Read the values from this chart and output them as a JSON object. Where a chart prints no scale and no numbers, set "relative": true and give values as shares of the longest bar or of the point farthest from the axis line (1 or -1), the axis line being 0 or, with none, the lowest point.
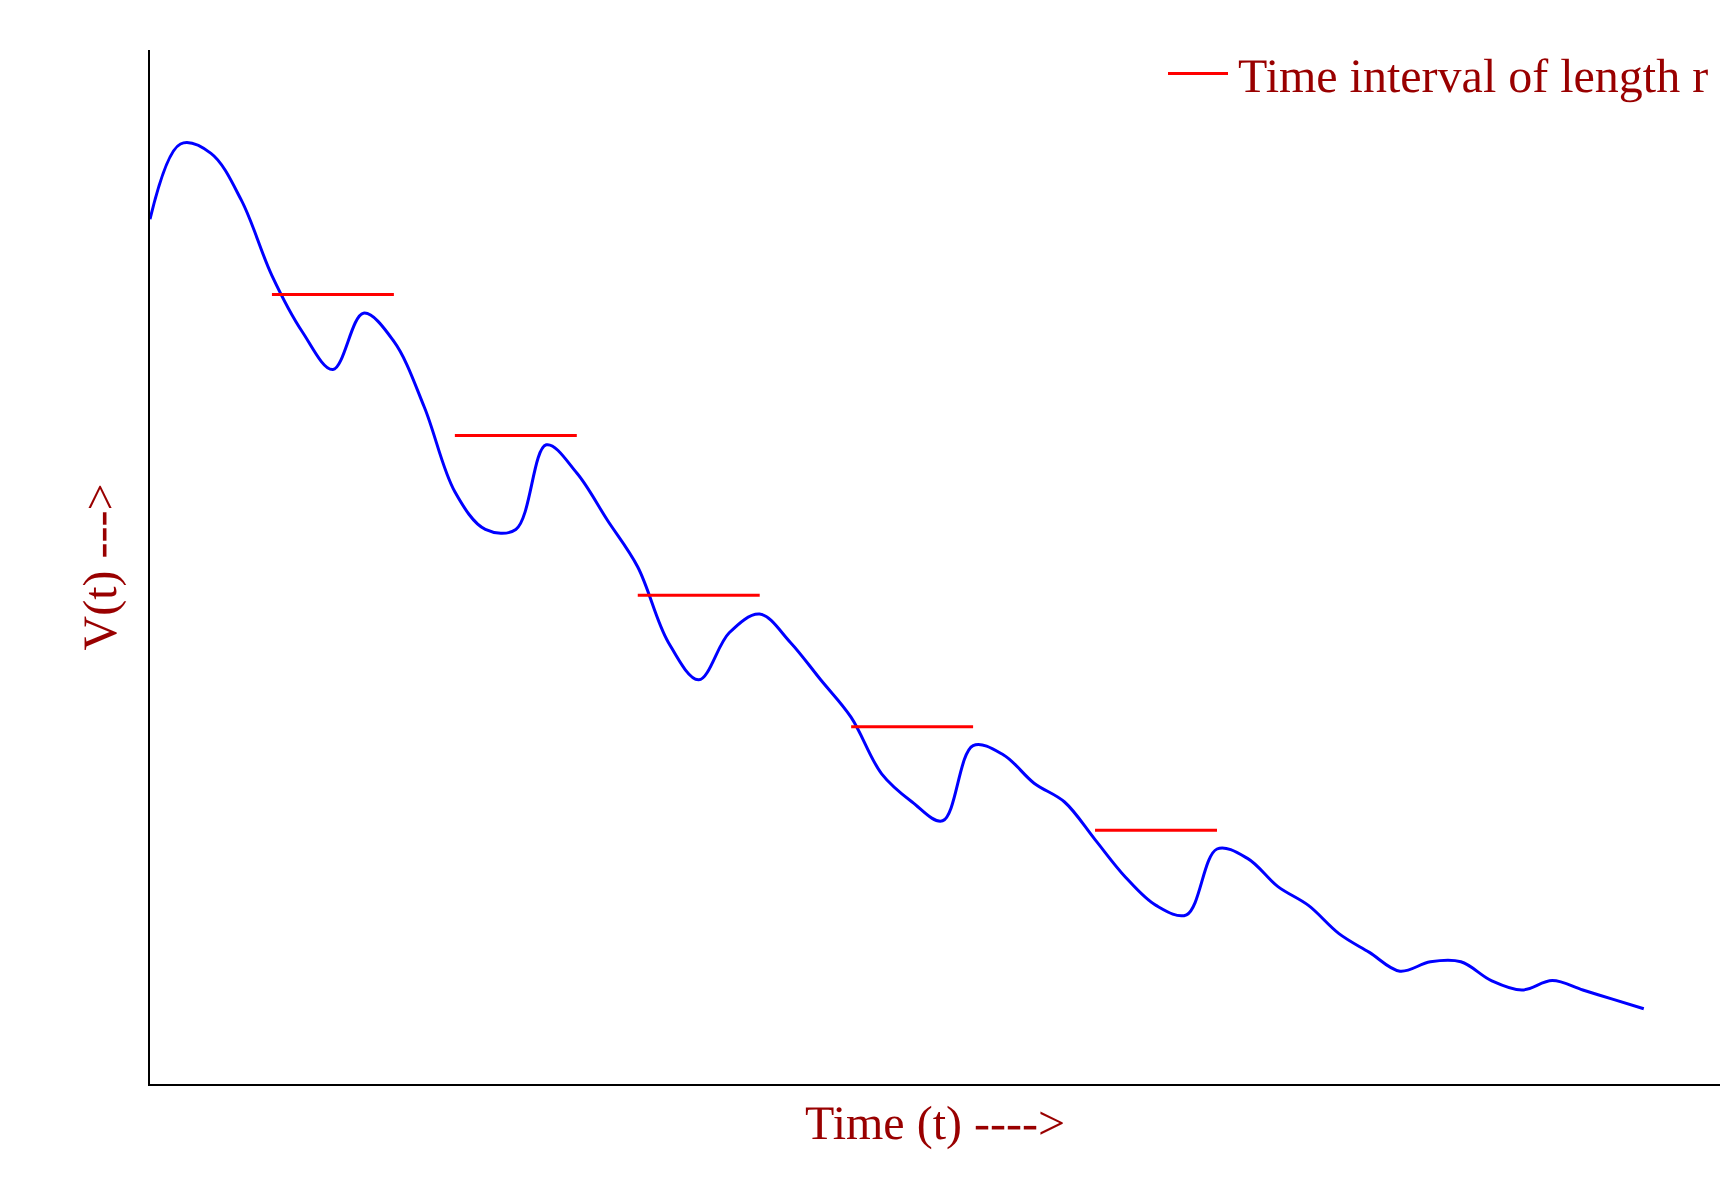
{
  "chart_data": {
    "type": "line",
    "relative": true,
    "xlabel": "Time (t) ---->",
    "ylabel": "V(t) --->",
    "legend": "top right",
    "categories": [
      null,
      null,
      null,
      null,
      null,
      null,
      null,
      null,
      null,
      null,
      null,
      null,
      null,
      null,
      null,
      null,
      null,
      null,
      null,
      null,
      null,
      null,
      null,
      null,
      null,
      null,
      null,
      null,
      null,
      null,
      null,
      null,
      null,
      null,
      null,
      null,
      null,
      null,
      null,
      null,
      null,
      null,
      null,
      null,
      null,
      null,
      null,
      null,
      null,
      null,
      null,
      null
    ],
    "series": [
      {
        "color": "#0000ff",
        "values": [
          0.92,
          1.0,
          0.99,
          0.94,
          0.86,
          0.8,
          0.76,
          0.82,
          0.79,
          0.72,
          0.63,
          0.59,
          0.59,
          0.68,
          0.65,
          0.6,
          0.55,
          0.47,
          0.43,
          0.48,
          0.5,
          0.47,
          0.43,
          0.39,
          0.33,
          0.3,
          0.28,
          0.36,
          0.35,
          0.32,
          0.3,
          0.26,
          0.22,
          0.19,
          0.18,
          0.25,
          0.24,
          0.21,
          0.19,
          0.16,
          0.14,
          0.12,
          0.13,
          0.13,
          0.11,
          0.1,
          0.11,
          0.1,
          0.09,
          0.08,
          null,
          null
        ]
      },
      {
        "name": "Time interval of length r",
        "color": "#ff0000",
        "values": [
          null,
          null,
          null,
          null,
          0.84,
          0.84,
          0.84,
          0.84,
          0.84,
          null,
          0.69,
          0.69,
          0.69,
          0.69,
          0.69,
          null,
          0.52,
          0.52,
          0.52,
          0.52,
          0.52,
          null,
          null,
          0.38,
          0.38,
          0.38,
          0.38,
          0.38,
          null,
          null,
          null,
          0.27,
          0.27,
          0.27,
          0.27,
          0.27,
          null,
          null,
          null,
          null,
          null,
          null,
          null,
          null,
          null,
          null,
          null,
          null,
          null,
          null,
          null,
          null
        ]
      }
    ]
  }
}
